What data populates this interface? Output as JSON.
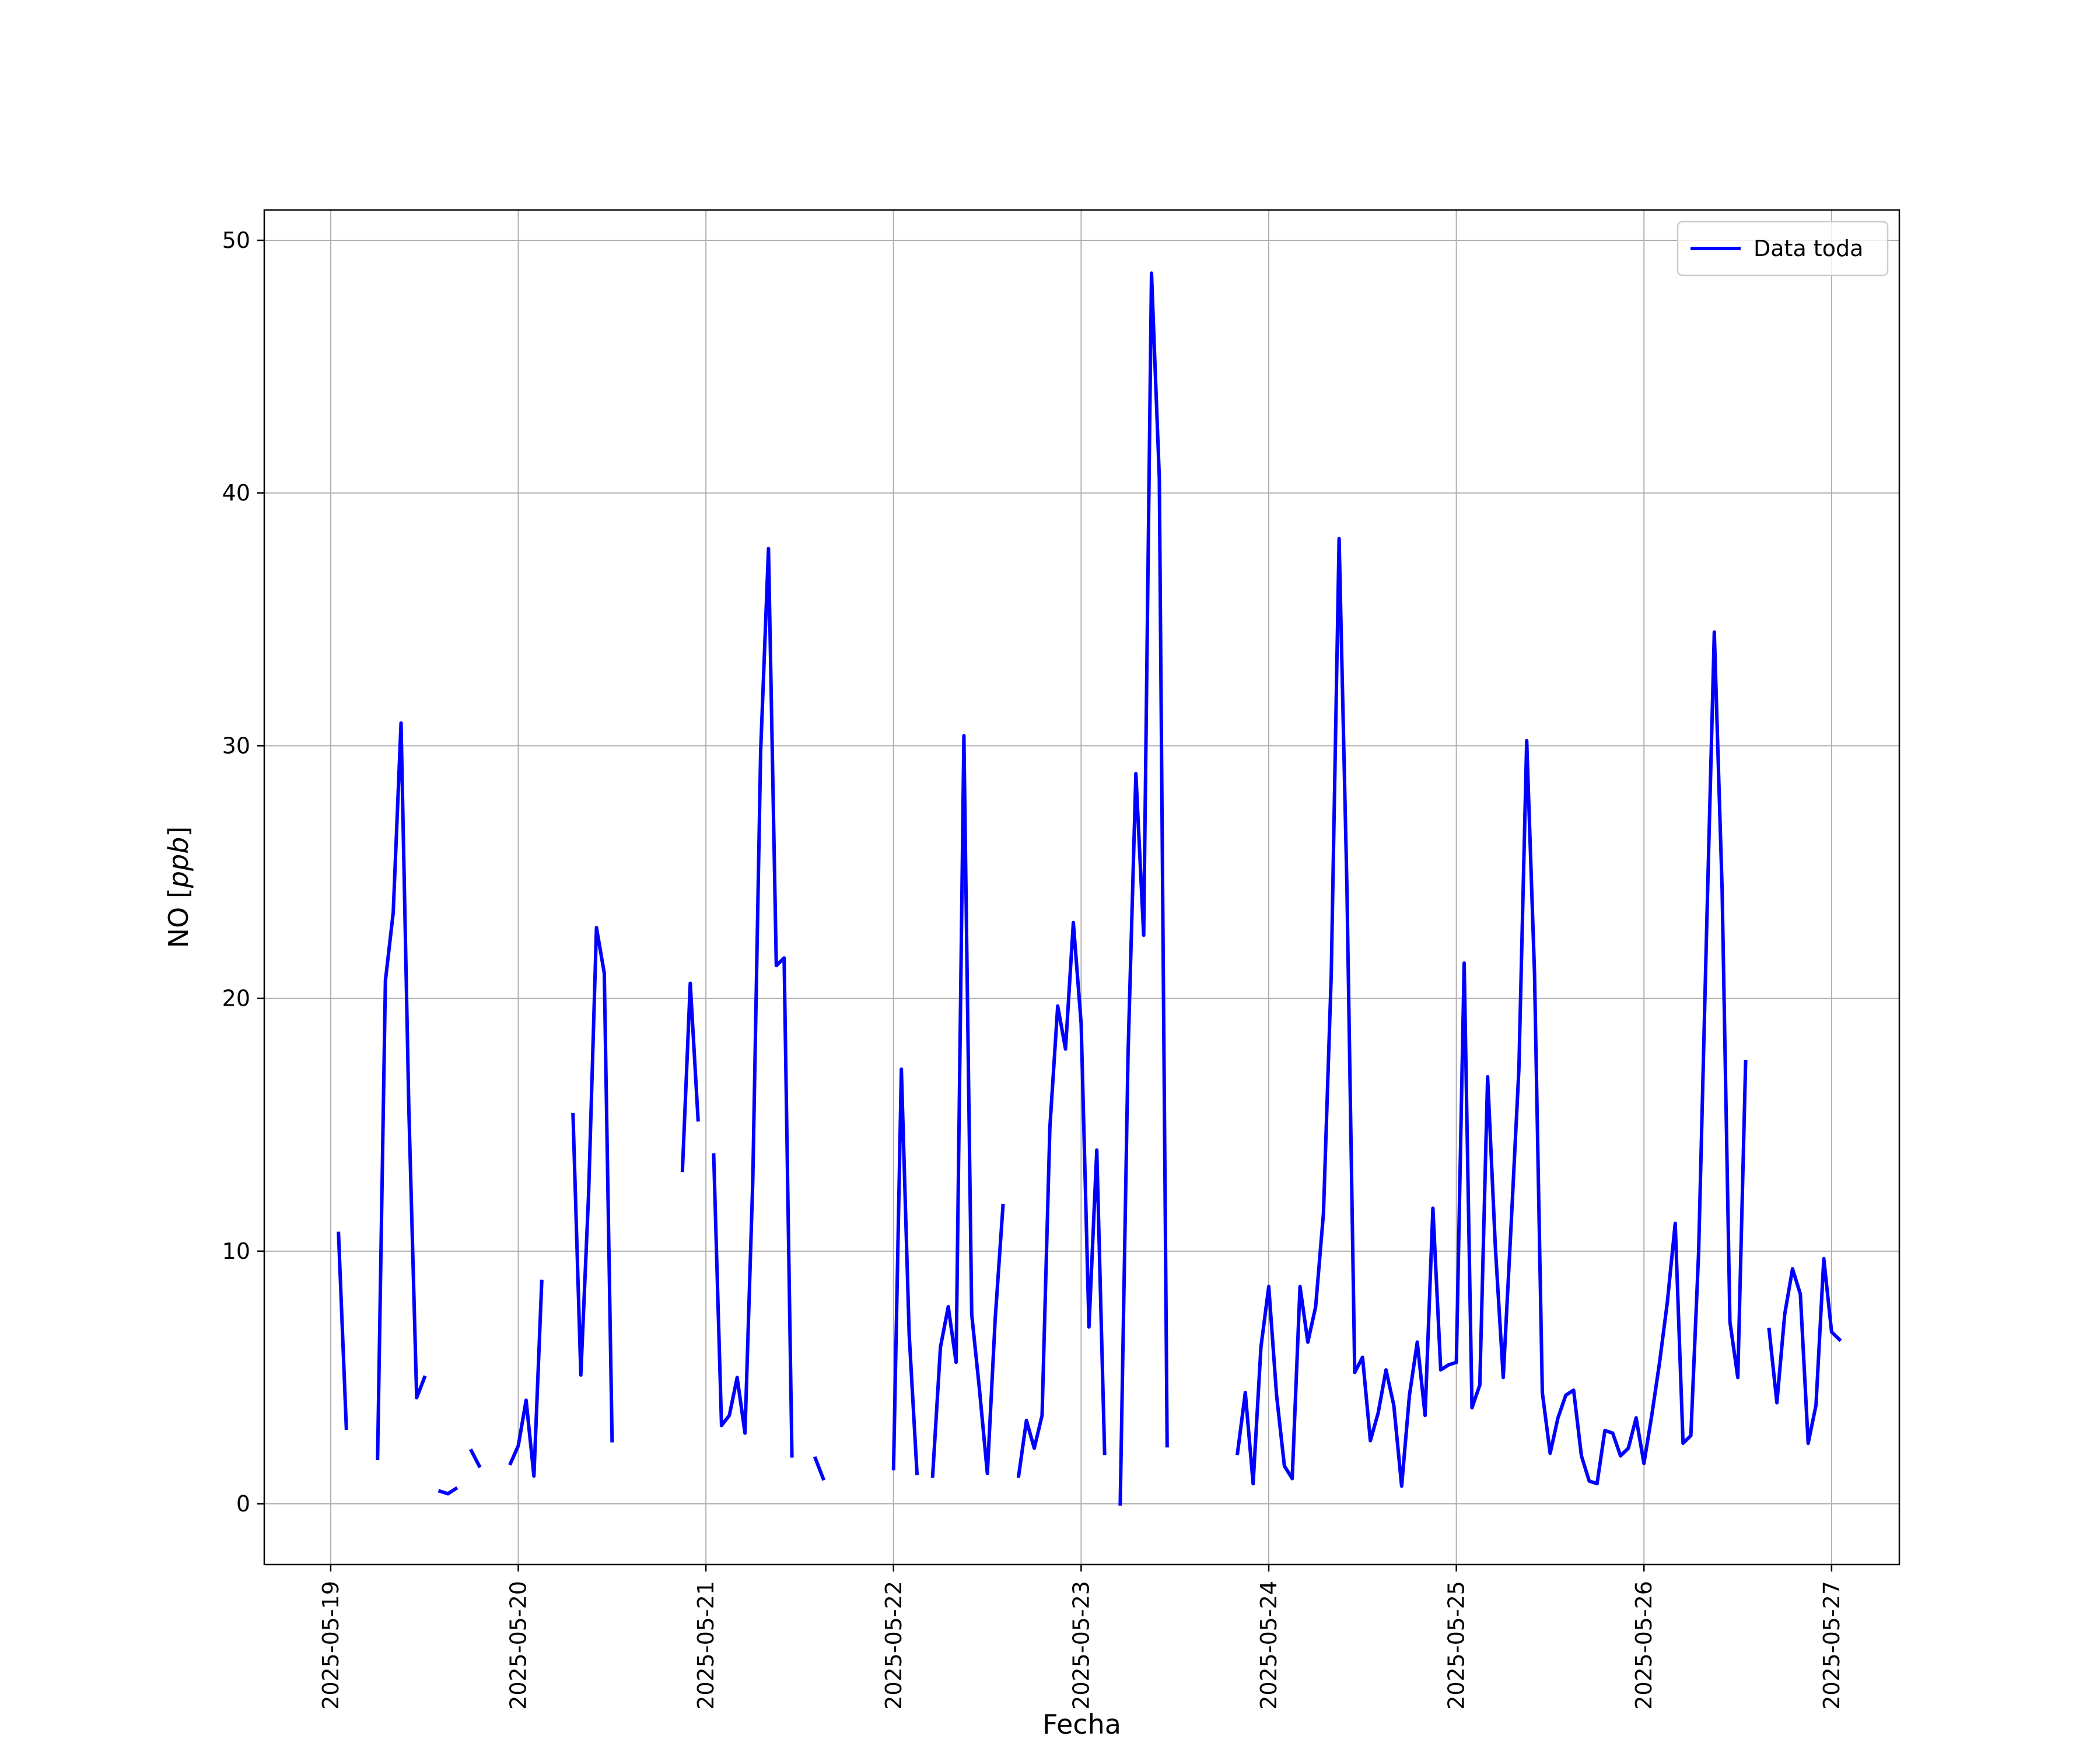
{
  "chart_data": {
    "type": "line",
    "title": "",
    "xlabel": "Fecha",
    "ylabel_main": "NO [",
    "ylabel_unit": "ppb",
    "ylabel_close": "]",
    "ylim": [
      -2.4,
      51.2
    ],
    "xlim": [
      "2025-05-18 15:30",
      "2025-05-27 08:40"
    ],
    "grid": true,
    "legend_position": "top-right",
    "x_ticks": [
      "2025-05-19",
      "2025-05-20",
      "2025-05-21",
      "2025-05-22",
      "2025-05-23",
      "2025-05-24",
      "2025-05-25",
      "2025-05-26",
      "2025-05-27"
    ],
    "y_ticks": [
      0,
      10,
      20,
      30,
      40,
      50
    ],
    "series": [
      {
        "name": "Data toda",
        "color": "#0000ff",
        "points": [
          [
            "2025-05-19 01:00",
            10.7
          ],
          [
            "2025-05-19 02:00",
            3.0
          ],
          [
            "2025-05-19 03:00",
            null
          ],
          [
            "2025-05-19 06:00",
            1.8
          ],
          [
            "2025-05-19 07:00",
            20.7
          ],
          [
            "2025-05-19 08:00",
            23.4
          ],
          [
            "2025-05-19 09:00",
            30.9
          ],
          [
            "2025-05-19 10:00",
            15.6
          ],
          [
            "2025-05-19 11:00",
            4.2
          ],
          [
            "2025-05-19 12:00",
            5.0
          ],
          [
            "2025-05-19 13:00",
            null
          ],
          [
            "2025-05-19 14:00",
            0.5
          ],
          [
            "2025-05-19 15:00",
            0.4
          ],
          [
            "2025-05-19 16:00",
            0.6
          ],
          [
            "2025-05-19 17:00",
            null
          ],
          [
            "2025-05-19 18:00",
            2.1
          ],
          [
            "2025-05-19 19:00",
            1.5
          ],
          [
            "2025-05-19 20:00",
            null
          ],
          [
            "2025-05-19 23:00",
            1.6
          ],
          [
            "2025-05-20 00:00",
            2.3
          ],
          [
            "2025-05-20 01:00",
            4.1
          ],
          [
            "2025-05-20 02:00",
            1.1
          ],
          [
            "2025-05-20 03:00",
            8.8
          ],
          [
            "2025-05-20 04:00",
            null
          ],
          [
            "2025-05-20 07:00",
            15.4
          ],
          [
            "2025-05-20 08:00",
            5.1
          ],
          [
            "2025-05-20 09:00",
            12.3
          ],
          [
            "2025-05-20 10:00",
            22.8
          ],
          [
            "2025-05-20 11:00",
            21.0
          ],
          [
            "2025-05-20 12:00",
            2.5
          ],
          [
            "2025-05-20 13:00",
            null
          ],
          [
            "2025-05-20 21:00",
            13.2
          ],
          [
            "2025-05-20 22:00",
            20.6
          ],
          [
            "2025-05-20 23:00",
            15.2
          ],
          [
            "2025-05-21 00:00",
            null
          ],
          [
            "2025-05-21 01:00",
            13.8
          ],
          [
            "2025-05-21 02:00",
            3.1
          ],
          [
            "2025-05-21 03:00",
            3.5
          ],
          [
            "2025-05-21 04:00",
            5.0
          ],
          [
            "2025-05-21 05:00",
            2.8
          ],
          [
            "2025-05-21 06:00",
            12.8
          ],
          [
            "2025-05-21 07:00",
            29.8
          ],
          [
            "2025-05-21 08:00",
            37.8
          ],
          [
            "2025-05-21 09:00",
            21.3
          ],
          [
            "2025-05-21 10:00",
            21.6
          ],
          [
            "2025-05-21 11:00",
            1.9
          ],
          [
            "2025-05-21 12:00",
            null
          ],
          [
            "2025-05-21 14:00",
            1.8
          ],
          [
            "2025-05-21 15:00",
            1.0
          ],
          [
            "2025-05-21 16:00",
            null
          ],
          [
            "2025-05-22 00:00",
            1.4
          ],
          [
            "2025-05-22 01:00",
            17.2
          ],
          [
            "2025-05-22 02:00",
            6.7
          ],
          [
            "2025-05-22 03:00",
            1.2
          ],
          [
            "2025-05-22 04:00",
            null
          ],
          [
            "2025-05-22 05:00",
            1.1
          ],
          [
            "2025-05-22 06:00",
            6.2
          ],
          [
            "2025-05-22 07:00",
            7.8
          ],
          [
            "2025-05-22 08:00",
            5.6
          ],
          [
            "2025-05-22 09:00",
            30.4
          ],
          [
            "2025-05-22 10:00",
            7.5
          ],
          [
            "2025-05-22 11:00",
            4.5
          ],
          [
            "2025-05-22 12:00",
            1.2
          ],
          [
            "2025-05-22 13:00",
            7.3
          ],
          [
            "2025-05-22 14:00",
            11.8
          ],
          [
            "2025-05-22 15:00",
            null
          ],
          [
            "2025-05-22 16:00",
            1.1
          ],
          [
            "2025-05-22 17:00",
            3.3
          ],
          [
            "2025-05-22 18:00",
            2.2
          ],
          [
            "2025-05-22 19:00",
            3.5
          ],
          [
            "2025-05-22 20:00",
            14.9
          ],
          [
            "2025-05-22 21:00",
            19.7
          ],
          [
            "2025-05-22 22:00",
            18.0
          ],
          [
            "2025-05-22 23:00",
            23.0
          ],
          [
            "2025-05-23 00:00",
            19.0
          ],
          [
            "2025-05-23 01:00",
            7.0
          ],
          [
            "2025-05-23 02:00",
            14.0
          ],
          [
            "2025-05-23 03:00",
            2.0
          ],
          [
            "2025-05-23 04:00",
            null
          ],
          [
            "2025-05-23 05:00",
            0.0
          ],
          [
            "2025-05-23 06:00",
            17.8
          ],
          [
            "2025-05-23 07:00",
            28.9
          ],
          [
            "2025-05-23 08:00",
            22.5
          ],
          [
            "2025-05-23 09:00",
            48.7
          ],
          [
            "2025-05-23 10:00",
            40.6
          ],
          [
            "2025-05-23 11:00",
            2.3
          ],
          [
            "2025-05-23 12:00",
            null
          ],
          [
            "2025-05-23 20:00",
            2.0
          ],
          [
            "2025-05-23 21:00",
            4.4
          ],
          [
            "2025-05-23 22:00",
            0.8
          ],
          [
            "2025-05-23 23:00",
            6.2
          ],
          [
            "2025-05-24 00:00",
            8.6
          ],
          [
            "2025-05-24 01:00",
            4.3
          ],
          [
            "2025-05-24 02:00",
            1.5
          ],
          [
            "2025-05-24 03:00",
            1.0
          ],
          [
            "2025-05-24 04:00",
            8.6
          ],
          [
            "2025-05-24 05:00",
            6.4
          ],
          [
            "2025-05-24 06:00",
            7.8
          ],
          [
            "2025-05-24 07:00",
            11.5
          ],
          [
            "2025-05-24 08:00",
            21.0
          ],
          [
            "2025-05-24 09:00",
            38.2
          ],
          [
            "2025-05-24 10:00",
            24.4
          ],
          [
            "2025-05-24 11:00",
            5.2
          ],
          [
            "2025-05-24 12:00",
            5.8
          ],
          [
            "2025-05-24 13:00",
            2.5
          ],
          [
            "2025-05-24 14:00",
            3.6
          ],
          [
            "2025-05-24 15:00",
            5.3
          ],
          [
            "2025-05-24 16:00",
            3.9
          ],
          [
            "2025-05-24 17:00",
            0.7
          ],
          [
            "2025-05-24 18:00",
            4.3
          ],
          [
            "2025-05-24 19:00",
            6.4
          ],
          [
            "2025-05-24 20:00",
            3.5
          ],
          [
            "2025-05-24 21:00",
            11.7
          ],
          [
            "2025-05-24 22:00",
            5.3
          ],
          [
            "2025-05-24 23:00",
            5.5
          ],
          [
            "2025-05-25 00:00",
            5.6
          ],
          [
            "2025-05-25 01:00",
            21.4
          ],
          [
            "2025-05-25 02:00",
            3.8
          ],
          [
            "2025-05-25 03:00",
            4.7
          ],
          [
            "2025-05-25 04:00",
            16.9
          ],
          [
            "2025-05-25 05:00",
            10.1
          ],
          [
            "2025-05-25 06:00",
            5.0
          ],
          [
            "2025-05-25 07:00",
            11.0
          ],
          [
            "2025-05-25 08:00",
            17.2
          ],
          [
            "2025-05-25 09:00",
            30.2
          ],
          [
            "2025-05-25 10:00",
            21.0
          ],
          [
            "2025-05-25 11:00",
            4.4
          ],
          [
            "2025-05-25 12:00",
            2.0
          ],
          [
            "2025-05-25 13:00",
            3.4
          ],
          [
            "2025-05-25 14:00",
            4.3
          ],
          [
            "2025-05-25 15:00",
            4.5
          ],
          [
            "2025-05-25 16:00",
            1.9
          ],
          [
            "2025-05-25 17:00",
            0.9
          ],
          [
            "2025-05-25 18:00",
            0.8
          ],
          [
            "2025-05-25 19:00",
            2.9
          ],
          [
            "2025-05-25 20:00",
            2.8
          ],
          [
            "2025-05-25 21:00",
            1.9
          ],
          [
            "2025-05-25 22:00",
            2.2
          ],
          [
            "2025-05-25 23:00",
            3.4
          ],
          [
            "2025-05-26 00:00",
            1.6
          ],
          [
            "2025-05-26 01:00",
            3.5
          ],
          [
            "2025-05-26 02:00",
            5.6
          ],
          [
            "2025-05-26 03:00",
            8.0
          ],
          [
            "2025-05-26 04:00",
            11.1
          ],
          [
            "2025-05-26 05:00",
            2.4
          ],
          [
            "2025-05-26 06:00",
            2.7
          ],
          [
            "2025-05-26 07:00",
            10.0
          ],
          [
            "2025-05-26 08:00",
            22.5
          ],
          [
            "2025-05-26 09:00",
            34.5
          ],
          [
            "2025-05-26 10:00",
            24.3
          ],
          [
            "2025-05-26 11:00",
            7.2
          ],
          [
            "2025-05-26 12:00",
            5.0
          ],
          [
            "2025-05-26 13:00",
            17.5
          ],
          [
            "2025-05-26 14:00",
            null
          ],
          [
            "2025-05-26 16:00",
            6.9
          ],
          [
            "2025-05-26 17:00",
            4.0
          ],
          [
            "2025-05-26 18:00",
            7.5
          ],
          [
            "2025-05-26 19:00",
            9.3
          ],
          [
            "2025-05-26 20:00",
            8.3
          ],
          [
            "2025-05-26 21:00",
            2.4
          ],
          [
            "2025-05-26 22:00",
            3.9
          ],
          [
            "2025-05-26 23:00",
            9.7
          ],
          [
            "2025-05-27 00:00",
            6.8
          ],
          [
            "2025-05-27 01:00",
            6.5
          ]
        ]
      }
    ]
  }
}
